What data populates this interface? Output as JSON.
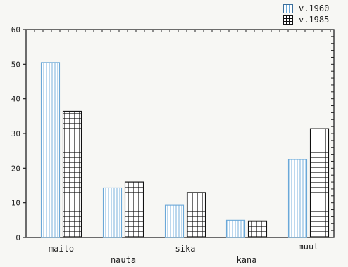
{
  "legend": {
    "series_1960": "v.1960",
    "series_1985": "v.1985"
  },
  "colors": {
    "series_1960": "#6aa8d8",
    "series_1985": "#111111",
    "axis": "#222222"
  },
  "chart_data": {
    "type": "bar",
    "categories": [
      "maito",
      "nauta",
      "sika",
      "kana",
      "muut"
    ],
    "series": [
      {
        "name": "v.1960",
        "values": [
          50.5,
          14.3,
          9.3,
          5.0,
          22.5
        ]
      },
      {
        "name": "v.1985",
        "values": [
          36.4,
          16.0,
          13.0,
          4.8,
          31.4
        ]
      }
    ],
    "title": "",
    "xlabel": "",
    "ylabel": "",
    "ylim": [
      0,
      60
    ],
    "yticks": [
      0,
      10,
      20,
      30,
      40,
      50,
      60
    ],
    "legend_position": "top-right",
    "grid": false
  }
}
